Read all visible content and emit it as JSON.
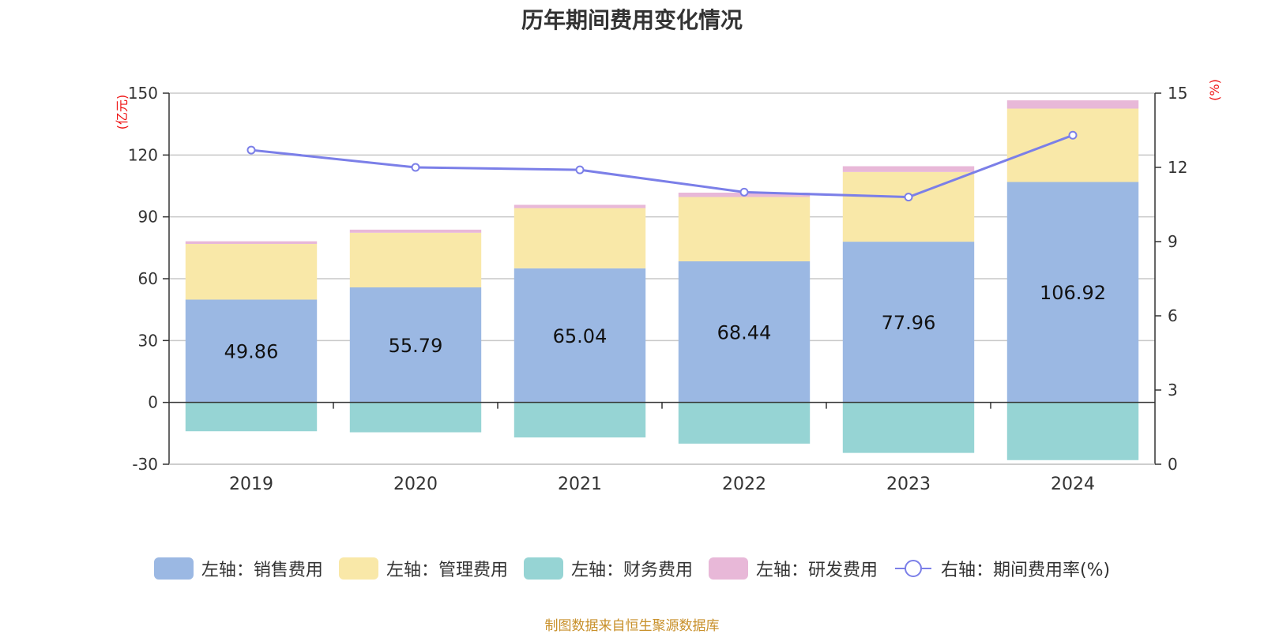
{
  "title": "历年期间费用变化情况",
  "source": "制图数据来自恒生聚源数据库",
  "chart_data": {
    "type": "bar",
    "stacked": true,
    "title": "历年期间费用变化情况",
    "categories": [
      "2019",
      "2020",
      "2021",
      "2022",
      "2023",
      "2024"
    ],
    "left_axis": {
      "unit": "(亿元)",
      "ylim": [
        -30,
        150
      ],
      "ticks": [
        -30,
        0,
        30,
        60,
        90,
        120,
        150
      ]
    },
    "right_axis": {
      "unit": "(%)",
      "ylim": [
        0,
        15
      ],
      "ticks": [
        0,
        3,
        6,
        9,
        12,
        15
      ]
    },
    "series": [
      {
        "name": "左轴：销售费用",
        "color": "#9bb8e3",
        "axis": "left",
        "values": [
          49.86,
          55.79,
          65.04,
          68.44,
          77.96,
          106.92
        ],
        "labels": [
          "49.86",
          "55.79",
          "65.04",
          "68.44",
          "77.96",
          "106.92"
        ]
      },
      {
        "name": "左轴：管理费用",
        "color": "#f9e8a8",
        "axis": "left",
        "values": [
          27.0,
          26.5,
          29.2,
          31.2,
          33.8,
          35.6
        ]
      },
      {
        "name": "左轴：财务费用",
        "color": "#96d4d4",
        "axis": "left",
        "values": [
          -14.0,
          -14.5,
          -17.0,
          -20.0,
          -24.5,
          -28.0
        ]
      },
      {
        "name": "左轴：研发费用",
        "color": "#e8b8d8",
        "axis": "left",
        "values": [
          1.3,
          1.5,
          1.6,
          2.1,
          2.8,
          4.0
        ]
      },
      {
        "name": "右轴：期间费用率(%)",
        "color": "#7b7fe8",
        "axis": "right",
        "type": "line",
        "values": [
          12.7,
          12.0,
          11.9,
          11.0,
          10.8,
          13.3
        ]
      }
    ]
  }
}
